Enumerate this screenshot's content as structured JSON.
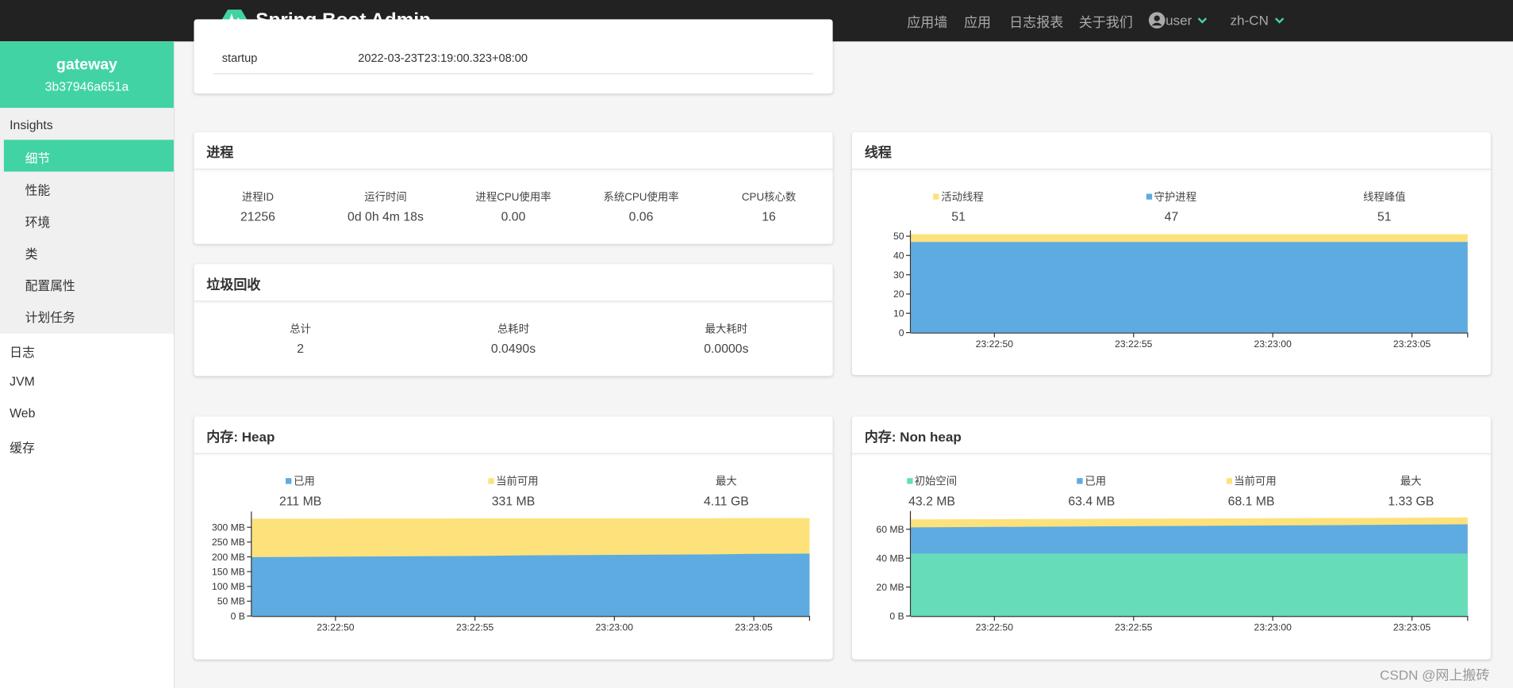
{
  "header": {
    "brand": "Spring Boot Admin",
    "nav": [
      "应用墙",
      "应用",
      "日志报表",
      "关于我们"
    ],
    "user": "user",
    "language": "zh-CN"
  },
  "sidebar": {
    "app_name": "gateway",
    "app_id": "3b37946a651a",
    "section": "Insights",
    "section_items": [
      "细节",
      "性能",
      "环境",
      "类",
      "配置属性",
      "计划任务"
    ],
    "active": "细节",
    "items": [
      "日志",
      "JVM",
      "Web",
      "缓存"
    ]
  },
  "info": {
    "rows": [
      {
        "label": "startup",
        "value": "2022-03-23T23:19:00.323+08:00"
      }
    ]
  },
  "process": {
    "title": "进程",
    "stats": [
      {
        "label": "进程ID",
        "value": "21256"
      },
      {
        "label": "运行时间",
        "value": "0d 0h 4m 18s"
      },
      {
        "label": "进程CPU使用率",
        "value": "0.00"
      },
      {
        "label": "系统CPU使用率",
        "value": "0.06"
      },
      {
        "label": "CPU核心数",
        "value": "16"
      }
    ]
  },
  "gc": {
    "title": "垃圾回收",
    "stats": [
      {
        "label": "总计",
        "value": "2"
      },
      {
        "label": "总耗时",
        "value": "0.0490s"
      },
      {
        "label": "最大耗时",
        "value": "0.0000s"
      }
    ]
  },
  "threads": {
    "title": "线程",
    "extra": {
      "label": "线程峰值",
      "value": "51"
    },
    "chart": {
      "type": "area",
      "x": [
        "23:22:47",
        "23:22:49",
        "23:22:51",
        "23:22:53",
        "23:22:55",
        "23:22:57",
        "23:22:59",
        "23:23:01",
        "23:23:03",
        "23:23:05",
        "23:23:07"
      ],
      "xlim": [
        "23:22:47",
        "23:23:07"
      ],
      "xticks": [
        "23:22:50",
        "23:22:55",
        "23:23:00",
        "23:23:05"
      ],
      "ylim": [
        0,
        51
      ],
      "yticks": [
        0,
        10,
        20,
        30,
        40,
        50
      ],
      "series": [
        {
          "name": "活动线程",
          "color": "#fde27b",
          "current": "51",
          "values": [
            51,
            51,
            51,
            51,
            51,
            51,
            51,
            51,
            51,
            51,
            51
          ]
        },
        {
          "name": "守护进程",
          "color": "#5dabe1",
          "current": "47",
          "values": [
            47,
            47,
            47,
            47,
            47,
            47,
            47,
            47,
            47,
            47,
            47
          ]
        }
      ]
    }
  },
  "heap": {
    "title": "内存: Heap",
    "extra": {
      "label": "最大",
      "value": "4.11 GB"
    },
    "chart": {
      "type": "area",
      "x": [
        "23:22:47",
        "23:22:49",
        "23:22:51",
        "23:22:53",
        "23:22:55",
        "23:22:57",
        "23:22:59",
        "23:23:01",
        "23:23:03",
        "23:23:05",
        "23:23:07"
      ],
      "xlim": [
        "23:22:47",
        "23:23:07"
      ],
      "xticks": [
        "23:22:50",
        "23:22:55",
        "23:23:00",
        "23:23:05"
      ],
      "ylim": [
        0,
        340
      ],
      "yticks": [
        {
          "value": 0,
          "label": "0 B"
        },
        {
          "value": 50,
          "label": "50 MB"
        },
        {
          "value": 100,
          "label": "100 MB"
        },
        {
          "value": 150,
          "label": "150 MB"
        },
        {
          "value": 200,
          "label": "200 MB"
        },
        {
          "value": 250,
          "label": "250 MB"
        },
        {
          "value": 300,
          "label": "300 MB"
        }
      ],
      "series": [
        {
          "name": "当前可用",
          "color": "#fde27b",
          "current": "331 MB",
          "values": [
            329,
            329,
            329.5,
            329.5,
            330,
            330,
            330,
            330.5,
            330.5,
            331,
            331
          ]
        },
        {
          "name": "已用",
          "color": "#5dabe1",
          "current": "211 MB",
          "values": [
            199,
            200,
            201,
            202,
            203,
            205,
            206,
            207,
            208,
            210,
            211
          ]
        }
      ]
    }
  },
  "nonheap": {
    "title": "内存: Non heap",
    "extra": {
      "label": "最大",
      "value": "1.33 GB"
    },
    "chart": {
      "type": "area",
      "x": [
        "23:22:47",
        "23:22:49",
        "23:22:51",
        "23:22:53",
        "23:22:55",
        "23:22:57",
        "23:22:59",
        "23:23:01",
        "23:23:03",
        "23:23:05",
        "23:23:07"
      ],
      "xlim": [
        "23:22:47",
        "23:23:07"
      ],
      "xticks": [
        "23:22:50",
        "23:22:55",
        "23:23:00",
        "23:23:05"
      ],
      "ylim": [
        0,
        70
      ],
      "yticks": [
        {
          "value": 0,
          "label": "0 B"
        },
        {
          "value": 20,
          "label": "20 MB"
        },
        {
          "value": 40,
          "label": "40 MB"
        },
        {
          "value": 60,
          "label": "60 MB"
        }
      ],
      "series": [
        {
          "name": "当前可用",
          "color": "#fde27b",
          "current": "68.1 MB",
          "values": [
            66.8,
            66.9,
            67,
            67.1,
            67.3,
            67.4,
            67.5,
            67.7,
            67.8,
            68,
            68.1
          ]
        },
        {
          "name": "已用",
          "color": "#5dabe1",
          "current": "63.4 MB",
          "values": [
            61.3,
            61.5,
            61.7,
            61.9,
            62.1,
            62.3,
            62.5,
            62.7,
            62.9,
            63.2,
            63.4
          ]
        },
        {
          "name": "初始空间",
          "color": "#66ddb8",
          "current": "43.2 MB",
          "values": [
            43.2,
            43.2,
            43.2,
            43.2,
            43.2,
            43.2,
            43.2,
            43.2,
            43.2,
            43.2,
            43.2
          ]
        }
      ]
    }
  },
  "watermark": "CSDN @网上搬砖"
}
